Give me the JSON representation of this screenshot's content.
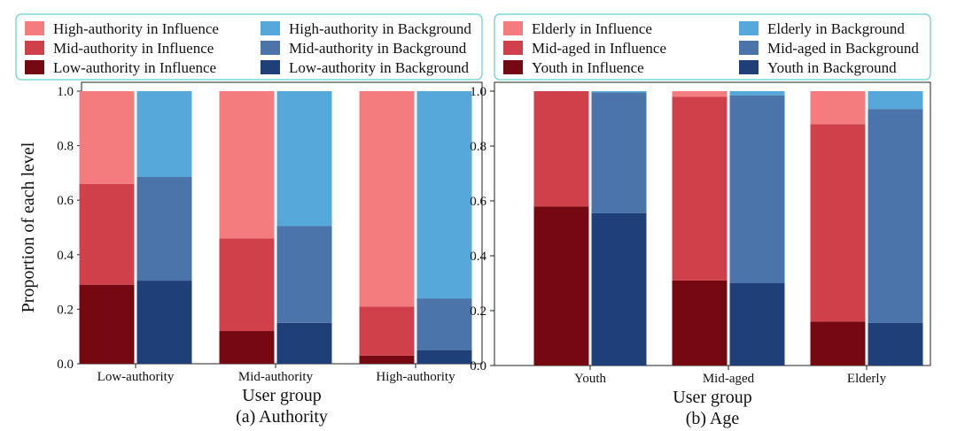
{
  "colors": {
    "influence": [
      "#f47c7e",
      "#d0404a",
      "#760812"
    ],
    "background": [
      "#56a8da",
      "#4a74aa",
      "#1f3f78"
    ],
    "legend_border": "#7ed8d8"
  },
  "shared": {
    "ylabel": "Proportion of each level",
    "ytick_labels": [
      "0.0",
      "0.2",
      "0.4",
      "0.6",
      "0.8",
      "1.0"
    ]
  },
  "chart_data": [
    {
      "type": "bar",
      "stacked": true,
      "caption": "(a) Authority",
      "xlabel": "User group",
      "ylabel": "Proportion of each level",
      "ylim": [
        0,
        1
      ],
      "categories": [
        "Low-authority",
        "Mid-authority",
        "High-authority"
      ],
      "legend": [
        "High-authority in Influence",
        "High-authority in Background",
        "Mid-authority in Influence",
        "Mid-authority in Background",
        "Low-authority in Influence",
        "Low-authority in Background"
      ],
      "series": [
        {
          "name": "Low-authority in Influence",
          "group": "Influence",
          "values": [
            0.29,
            0.12,
            0.03
          ]
        },
        {
          "name": "Mid-authority in Influence",
          "group": "Influence",
          "values": [
            0.37,
            0.34,
            0.18
          ]
        },
        {
          "name": "High-authority in Influence",
          "group": "Influence",
          "values": [
            0.34,
            0.54,
            0.79
          ]
        },
        {
          "name": "Low-authority in Background",
          "group": "Background",
          "values": [
            0.305,
            0.15,
            0.05
          ]
        },
        {
          "name": "Mid-authority in Background",
          "group": "Background",
          "values": [
            0.38,
            0.355,
            0.19
          ]
        },
        {
          "name": "High-authority in Background",
          "group": "Background",
          "values": [
            0.315,
            0.495,
            0.76
          ]
        }
      ]
    },
    {
      "type": "bar",
      "stacked": true,
      "caption": "(b) Age",
      "xlabel": "User group",
      "ylabel": "",
      "ylim": [
        0,
        1
      ],
      "categories": [
        "Youth",
        "Mid-aged",
        "Elderly"
      ],
      "legend": [
        "Elderly in Influence",
        "Elderly in Background",
        "Mid-aged in Influence",
        "Mid-aged in Background",
        "Youth in Influence",
        "Youth in Background"
      ],
      "series": [
        {
          "name": "Youth in Influence",
          "group": "Influence",
          "values": [
            0.58,
            0.31,
            0.16
          ]
        },
        {
          "name": "Mid-aged in Influence",
          "group": "Influence",
          "values": [
            0.42,
            0.67,
            0.72
          ]
        },
        {
          "name": "Elderly in Influence",
          "group": "Influence",
          "values": [
            0.0,
            0.02,
            0.12
          ]
        },
        {
          "name": "Youth in Background",
          "group": "Background",
          "values": [
            0.555,
            0.3,
            0.155
          ]
        },
        {
          "name": "Mid-aged in Background",
          "group": "Background",
          "values": [
            0.44,
            0.685,
            0.78
          ]
        },
        {
          "name": "Elderly in Background",
          "group": "Background",
          "values": [
            0.005,
            0.015,
            0.065
          ]
        }
      ]
    }
  ]
}
